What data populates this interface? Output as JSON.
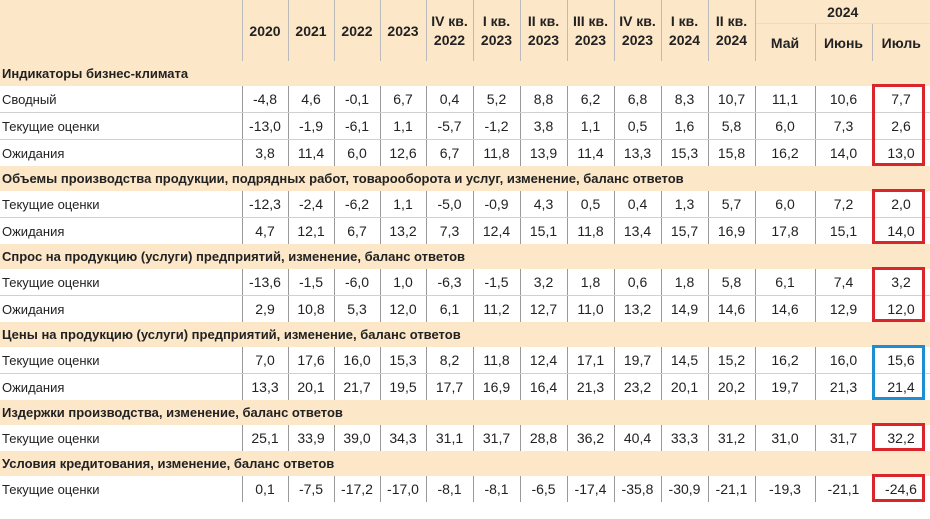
{
  "header": {
    "years": [
      "2020",
      "2021",
      "2022",
      "2023"
    ],
    "quarters": [
      {
        "q": "IV кв.",
        "y": "2022"
      },
      {
        "q": "I кв.",
        "y": "2023"
      },
      {
        "q": "II кв.",
        "y": "2023"
      },
      {
        "q": "III кв.",
        "y": "2023"
      },
      {
        "q": "IV кв.",
        "y": "2023"
      },
      {
        "q": "I кв.",
        "y": "2024"
      },
      {
        "q": "II кв.",
        "y": "2024"
      }
    ],
    "group_year": "2024",
    "months": [
      "Май",
      "Июнь",
      "Июль"
    ]
  },
  "sections": [
    {
      "title": "Индикаторы бизнес-климата",
      "rows": [
        {
          "label": "Сводный",
          "values": [
            "-4,8",
            "4,6",
            "-0,1",
            "6,7",
            "0,4",
            "5,2",
            "8,8",
            "6,2",
            "6,8",
            "8,3",
            "10,7",
            "11,1",
            "10,6",
            "7,7"
          ]
        },
        {
          "label": "Текущие оценки",
          "values": [
            "-13,0",
            "-1,9",
            "-6,1",
            "1,1",
            "-5,7",
            "-1,2",
            "3,8",
            "1,1",
            "0,5",
            "1,6",
            "5,8",
            "6,0",
            "7,3",
            "2,6"
          ]
        },
        {
          "label": "Ожидания",
          "values": [
            "3,8",
            "11,4",
            "6,0",
            "12,6",
            "6,7",
            "11,8",
            "13,9",
            "11,4",
            "13,3",
            "15,3",
            "15,8",
            "16,2",
            "14,0",
            "13,0"
          ]
        }
      ]
    },
    {
      "title": "Объемы производства продукции, подрядных работ, товарооборота и услуг, изменение, баланс ответов",
      "rows": [
        {
          "label": "Текущие оценки",
          "values": [
            "-12,3",
            "-2,4",
            "-6,2",
            "1,1",
            "-5,0",
            "-0,9",
            "4,3",
            "0,5",
            "0,4",
            "1,3",
            "5,7",
            "6,0",
            "7,2",
            "2,0"
          ]
        },
        {
          "label": "Ожидания",
          "values": [
            "4,7",
            "12,1",
            "6,7",
            "13,2",
            "7,3",
            "12,4",
            "15,1",
            "11,8",
            "13,4",
            "15,7",
            "16,9",
            "17,8",
            "15,1",
            "14,0"
          ]
        }
      ]
    },
    {
      "title": "Спрос на продукцию (услуги) предприятий, изменение, баланс ответов",
      "rows": [
        {
          "label": "Текущие оценки",
          "values": [
            "-13,6",
            "-1,5",
            "-6,0",
            "1,0",
            "-6,3",
            "-1,5",
            "3,2",
            "1,8",
            "0,6",
            "1,8",
            "5,8",
            "6,1",
            "7,4",
            "3,2"
          ]
        },
        {
          "label": "Ожидания",
          "values": [
            "2,9",
            "10,8",
            "5,3",
            "12,0",
            "6,1",
            "11,2",
            "12,7",
            "11,0",
            "13,2",
            "14,9",
            "14,6",
            "14,6",
            "12,9",
            "12,0"
          ]
        }
      ]
    },
    {
      "title": "Цены на продукцию (услуги) предприятий, изменение, баланс ответов",
      "rows": [
        {
          "label": "Текущие оценки",
          "values": [
            "7,0",
            "17,6",
            "16,0",
            "15,3",
            "8,2",
            "11,8",
            "12,4",
            "17,1",
            "19,7",
            "14,5",
            "15,2",
            "16,2",
            "16,0",
            "15,6"
          ]
        },
        {
          "label": "Ожидания",
          "values": [
            "13,3",
            "20,1",
            "21,7",
            "19,5",
            "17,7",
            "16,9",
            "16,4",
            "21,3",
            "23,2",
            "20,1",
            "20,2",
            "19,7",
            "21,3",
            "21,4"
          ]
        }
      ]
    },
    {
      "title": "Издержки производства, изменение, баланс ответов",
      "rows": [
        {
          "label": "Текущие оценки",
          "values": [
            "25,1",
            "33,9",
            "39,0",
            "34,3",
            "31,1",
            "31,7",
            "28,8",
            "36,2",
            "40,4",
            "33,3",
            "31,2",
            "31,0",
            "31,7",
            "32,2"
          ]
        }
      ]
    },
    {
      "title": "Условия кредитования, изменение, баланс ответов",
      "rows": [
        {
          "label": "Текущие оценки",
          "values": [
            "0,1",
            "-7,5",
            "-17,2",
            "-17,0",
            "-8,1",
            "-8,1",
            "-6,5",
            "-17,4",
            "-35,8",
            "-30,9",
            "-21,1",
            "-19,3",
            "-21,1",
            "-24,6"
          ]
        }
      ]
    }
  ],
  "highlight_colors": {
    "red": "#d9262a",
    "blue": "#1d8ed4"
  }
}
